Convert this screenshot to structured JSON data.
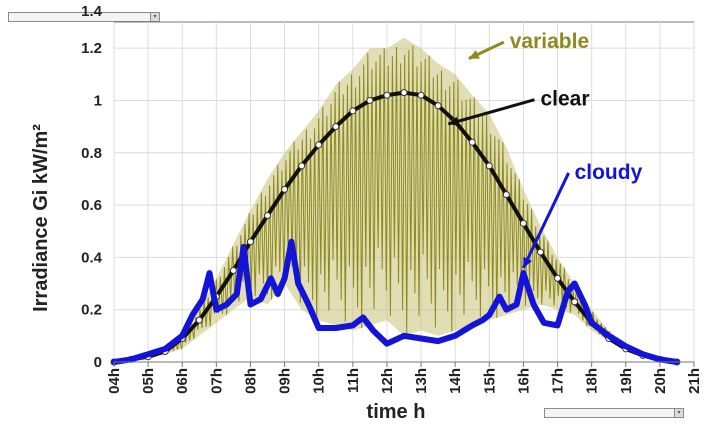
{
  "controls": {
    "top_combo": {
      "value": "",
      "arrow": "▾"
    },
    "bottom_combo": {
      "value": "",
      "arrow": "▾"
    }
  },
  "colors": {
    "variable": "#8f8a1e",
    "variable_fill": "#c9c27a",
    "clear": "#111111",
    "cloudy": "#1414d8",
    "grid": "#dcdcdc",
    "axis": "#777777"
  },
  "chart_data": {
    "type": "line",
    "title": "",
    "xlabel": "time h",
    "ylabel": "Irradiance Gi kW/m²",
    "xlim": [
      4,
      21
    ],
    "ylim": [
      0,
      1.3
    ],
    "grid": true,
    "x_ticks": [
      4,
      5,
      6,
      7,
      8,
      9,
      10,
      11,
      12,
      13,
      14,
      15,
      16,
      17,
      18,
      19,
      20,
      21
    ],
    "x_tick_labels": [
      "04h",
      "05h",
      "06h",
      "07h",
      "08h",
      "09h",
      "10h",
      "11h",
      "12h",
      "13h",
      "14h",
      "15h",
      "16h",
      "17h",
      "18h",
      "19h",
      "20h",
      "21h"
    ],
    "y_ticks": [
      0,
      0.2,
      0.4,
      0.6,
      0.8,
      1,
      1.2
    ],
    "y_tick_labels": [
      "0",
      "0.2",
      "0.4",
      "0.6",
      "0.8",
      "1",
      "1.2"
    ],
    "y_partial_label": "1.4",
    "series": [
      {
        "name": "variable",
        "x": [
          4,
          5,
          5.5,
          6,
          6.5,
          7,
          7.5,
          8,
          8.5,
          9,
          9.5,
          10,
          10.5,
          11,
          11.5,
          12,
          12.5,
          13,
          13.5,
          14,
          14.5,
          15,
          15.5,
          16,
          16.5,
          17,
          17.5,
          18,
          18.5,
          19,
          19.5,
          20,
          20.5
        ],
        "upper": [
          0,
          0.03,
          0.05,
          0.1,
          0.2,
          0.32,
          0.45,
          0.58,
          0.7,
          0.8,
          0.88,
          0.96,
          1.06,
          1.12,
          1.2,
          1.2,
          1.24,
          1.2,
          1.14,
          1.1,
          1.02,
          0.95,
          0.82,
          0.66,
          0.52,
          0.4,
          0.3,
          0.2,
          0.12,
          0.07,
          0.04,
          0.02,
          0
        ],
        "lower": [
          0,
          0.02,
          0.03,
          0.05,
          0.1,
          0.15,
          0.2,
          0.25,
          0.22,
          0.3,
          0.2,
          0.16,
          0.14,
          0.12,
          0.14,
          0.16,
          0.1,
          0.12,
          0.1,
          0.12,
          0.14,
          0.16,
          0.18,
          0.2,
          0.22,
          0.2,
          0.18,
          0.12,
          0.08,
          0.05,
          0.03,
          0.02,
          0
        ]
      },
      {
        "name": "clear",
        "x": [
          4,
          4.5,
          5,
          5.5,
          6,
          6.5,
          7,
          7.5,
          8,
          8.5,
          9,
          9.5,
          10,
          10.5,
          11,
          11.5,
          12,
          12.5,
          13,
          13.5,
          14,
          14.5,
          15,
          15.5,
          16,
          16.5,
          17,
          17.5,
          18,
          18.5,
          19,
          19.5,
          20,
          20.5
        ],
        "y": [
          0,
          0.01,
          0.02,
          0.04,
          0.09,
          0.16,
          0.25,
          0.35,
          0.46,
          0.56,
          0.66,
          0.75,
          0.83,
          0.9,
          0.96,
          1.0,
          1.02,
          1.03,
          1.02,
          0.98,
          0.92,
          0.84,
          0.75,
          0.64,
          0.53,
          0.42,
          0.32,
          0.23,
          0.15,
          0.09,
          0.05,
          0.025,
          0.01,
          0
        ]
      },
      {
        "name": "cloudy",
        "x": [
          4,
          4.5,
          5,
          5.5,
          6,
          6.3,
          6.6,
          6.8,
          7,
          7.3,
          7.6,
          7.8,
          8,
          8.3,
          8.6,
          8.8,
          9,
          9.2,
          9.4,
          9.7,
          10,
          10.5,
          11,
          11.3,
          11.6,
          12,
          12.5,
          13,
          13.5,
          14,
          14.5,
          14.8,
          15,
          15.3,
          15.5,
          15.8,
          16,
          16.3,
          16.6,
          17,
          17.3,
          17.5,
          17.8,
          18,
          18.5,
          19,
          19.5,
          20,
          20.5
        ],
        "y": [
          0,
          0.01,
          0.03,
          0.05,
          0.1,
          0.18,
          0.24,
          0.34,
          0.2,
          0.22,
          0.26,
          0.44,
          0.22,
          0.24,
          0.32,
          0.26,
          0.32,
          0.46,
          0.3,
          0.22,
          0.13,
          0.13,
          0.14,
          0.17,
          0.12,
          0.07,
          0.1,
          0.09,
          0.08,
          0.1,
          0.14,
          0.16,
          0.18,
          0.25,
          0.2,
          0.22,
          0.34,
          0.22,
          0.15,
          0.14,
          0.27,
          0.3,
          0.22,
          0.15,
          0.1,
          0.06,
          0.03,
          0.01,
          0
        ]
      }
    ],
    "annotations": [
      {
        "text": "variable",
        "series": "variable",
        "point": [
          14.4,
          1.16
        ],
        "label_at": [
          15.6,
          1.2
        ]
      },
      {
        "text": "clear",
        "series": "clear",
        "point": [
          13.8,
          0.91
        ],
        "label_at": [
          16.5,
          0.98
        ]
      },
      {
        "text": "cloudy",
        "series": "cloudy",
        "point": [
          16.0,
          0.36
        ],
        "label_at": [
          17.5,
          0.7
        ]
      }
    ]
  }
}
